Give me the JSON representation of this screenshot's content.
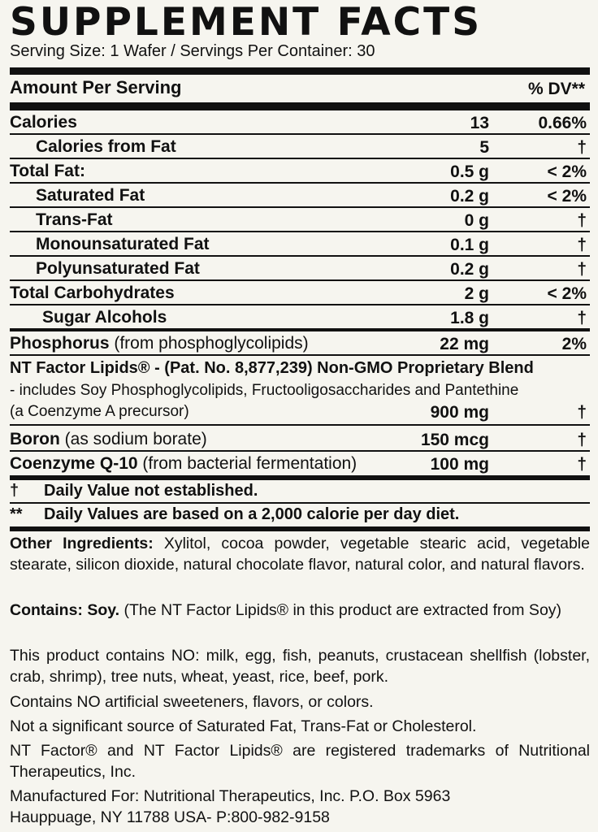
{
  "title": "SUPPLEMENT FACTS",
  "serving": "Serving Size: 1 Wafer / Servings Per Container: 30",
  "header": {
    "amount": "Amount Per Serving",
    "dv": "% DV**"
  },
  "rows": [
    {
      "label": "Calories",
      "note": "",
      "amount": "13",
      "dv": "0.66%"
    },
    {
      "label": "Calories from Fat",
      "note": "",
      "amount": "5",
      "dv": "†"
    },
    {
      "label": "Total Fat:",
      "note": "",
      "amount": "0.5 g",
      "dv": "< 2%"
    },
    {
      "label": "Saturated Fat",
      "note": "",
      "amount": "0.2 g",
      "dv": "< 2%"
    },
    {
      "label": "Trans-Fat",
      "note": "",
      "amount": "0 g",
      "dv": "†"
    },
    {
      "label": "Monounsaturated Fat",
      "note": "",
      "amount": "0.1 g",
      "dv": "†"
    },
    {
      "label": "Polyunsaturated Fat",
      "note": "",
      "amount": "0.2 g",
      "dv": "†"
    },
    {
      "label": "Total Carbohydrates",
      "note": "",
      "amount": "2 g",
      "dv": "< 2%"
    },
    {
      "label": "Sugar Alcohols",
      "note": "",
      "amount": "1.8 g",
      "dv": "†"
    },
    {
      "label": "Phosphorus",
      "note": "(from phosphoglycolipids)",
      "amount": "22 mg",
      "dv": "2%"
    }
  ],
  "blend": {
    "line1": "NT Factor Lipids® - (Pat. No. 8,877,239) Non-GMO Proprietary Blend",
    "line2": "- includes Soy Phosphoglycolipids, Fructooligosaccharides and Pantethine",
    "line3": "(a Coenzyme A precursor)",
    "amount": "900 mg",
    "dv": "†"
  },
  "rows2": [
    {
      "label": "Boron",
      "note": "(as sodium borate)",
      "amount": "150 mcg",
      "dv": "†"
    },
    {
      "label": "Coenzyme Q-10",
      "note": "(from bacterial fermentation)",
      "amount": "100 mg",
      "dv": "†"
    }
  ],
  "footnotes": [
    {
      "sym": "†",
      "text": "Daily Value not established."
    },
    {
      "sym": "**",
      "text": "Daily Values are based on a 2,000 calorie per day diet."
    }
  ],
  "other_ingredients": {
    "label": "Other Ingredients:",
    "text": "Xylitol, cocoa powder, vegetable stearic acid, vegetable stearate, silicon dioxide, natural chocolate flavor, natural color, and natural flavors."
  },
  "contains": {
    "label": "Contains: Soy.",
    "text": "(The NT Factor Lipids® in this product are extracted from Soy)"
  },
  "allergen_free": "This product contains NO: milk, egg, fish, peanuts, crustacean shellfish (lobster, crab, shrimp), tree nuts, wheat, yeast, rice, beef, pork.",
  "no_artificial": "Contains NO artificial sweeteners, flavors, or colors.",
  "not_significant": "Not a significant source of Saturated Fat, Trans-Fat or Cholesterol.",
  "trademark": "NT Factor® and NT Factor Lipids® are registered trademarks of Nutritional Therapeutics, Inc.",
  "manufacturer_line1": "Manufactured For: Nutritional Therapeutics, Inc. P.O. Box 5963",
  "manufacturer_line2": "Hauppuage, NY 11788 USA- P:800-982-9158"
}
